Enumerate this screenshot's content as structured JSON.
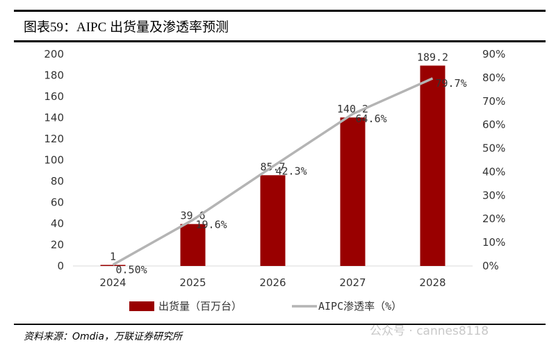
{
  "title": "图表59：AIPC 出货量及渗透率预测",
  "source": "资料来源：Omdia，万联证券研究所",
  "watermark": "公众号 · cannes8118",
  "chart_data": {
    "type": "bar+line",
    "categories": [
      "2024",
      "2025",
      "2026",
      "2027",
      "2028"
    ],
    "series": [
      {
        "name": "出货量（百万台）",
        "type": "bar",
        "axis": "left",
        "color": "#990000",
        "values": [
          1,
          39.6,
          85.7,
          140.2,
          189.2
        ],
        "labels": [
          "1",
          "39.6",
          "85.7",
          "140.2",
          "189.2"
        ]
      },
      {
        "name": "AIPC渗透率（%）",
        "type": "line",
        "axis": "right",
        "color": "#b4b4b4",
        "values": [
          0.5,
          19.6,
          42.3,
          64.6,
          79.7
        ],
        "labels": [
          "0.50%",
          "19.6%",
          "42.3%",
          "64.6%",
          "79.7%"
        ]
      }
    ],
    "left_axis": {
      "ylim": [
        0,
        200
      ],
      "ticks": [
        "0",
        "20",
        "40",
        "60",
        "80",
        "100",
        "120",
        "140",
        "160",
        "180",
        "200"
      ]
    },
    "right_axis": {
      "ylim": [
        0,
        90
      ],
      "ticks": [
        "0%",
        "10%",
        "20%",
        "30%",
        "40%",
        "50%",
        "60%",
        "70%",
        "80%",
        "90%"
      ]
    },
    "grid": false,
    "legend": "bottom"
  }
}
